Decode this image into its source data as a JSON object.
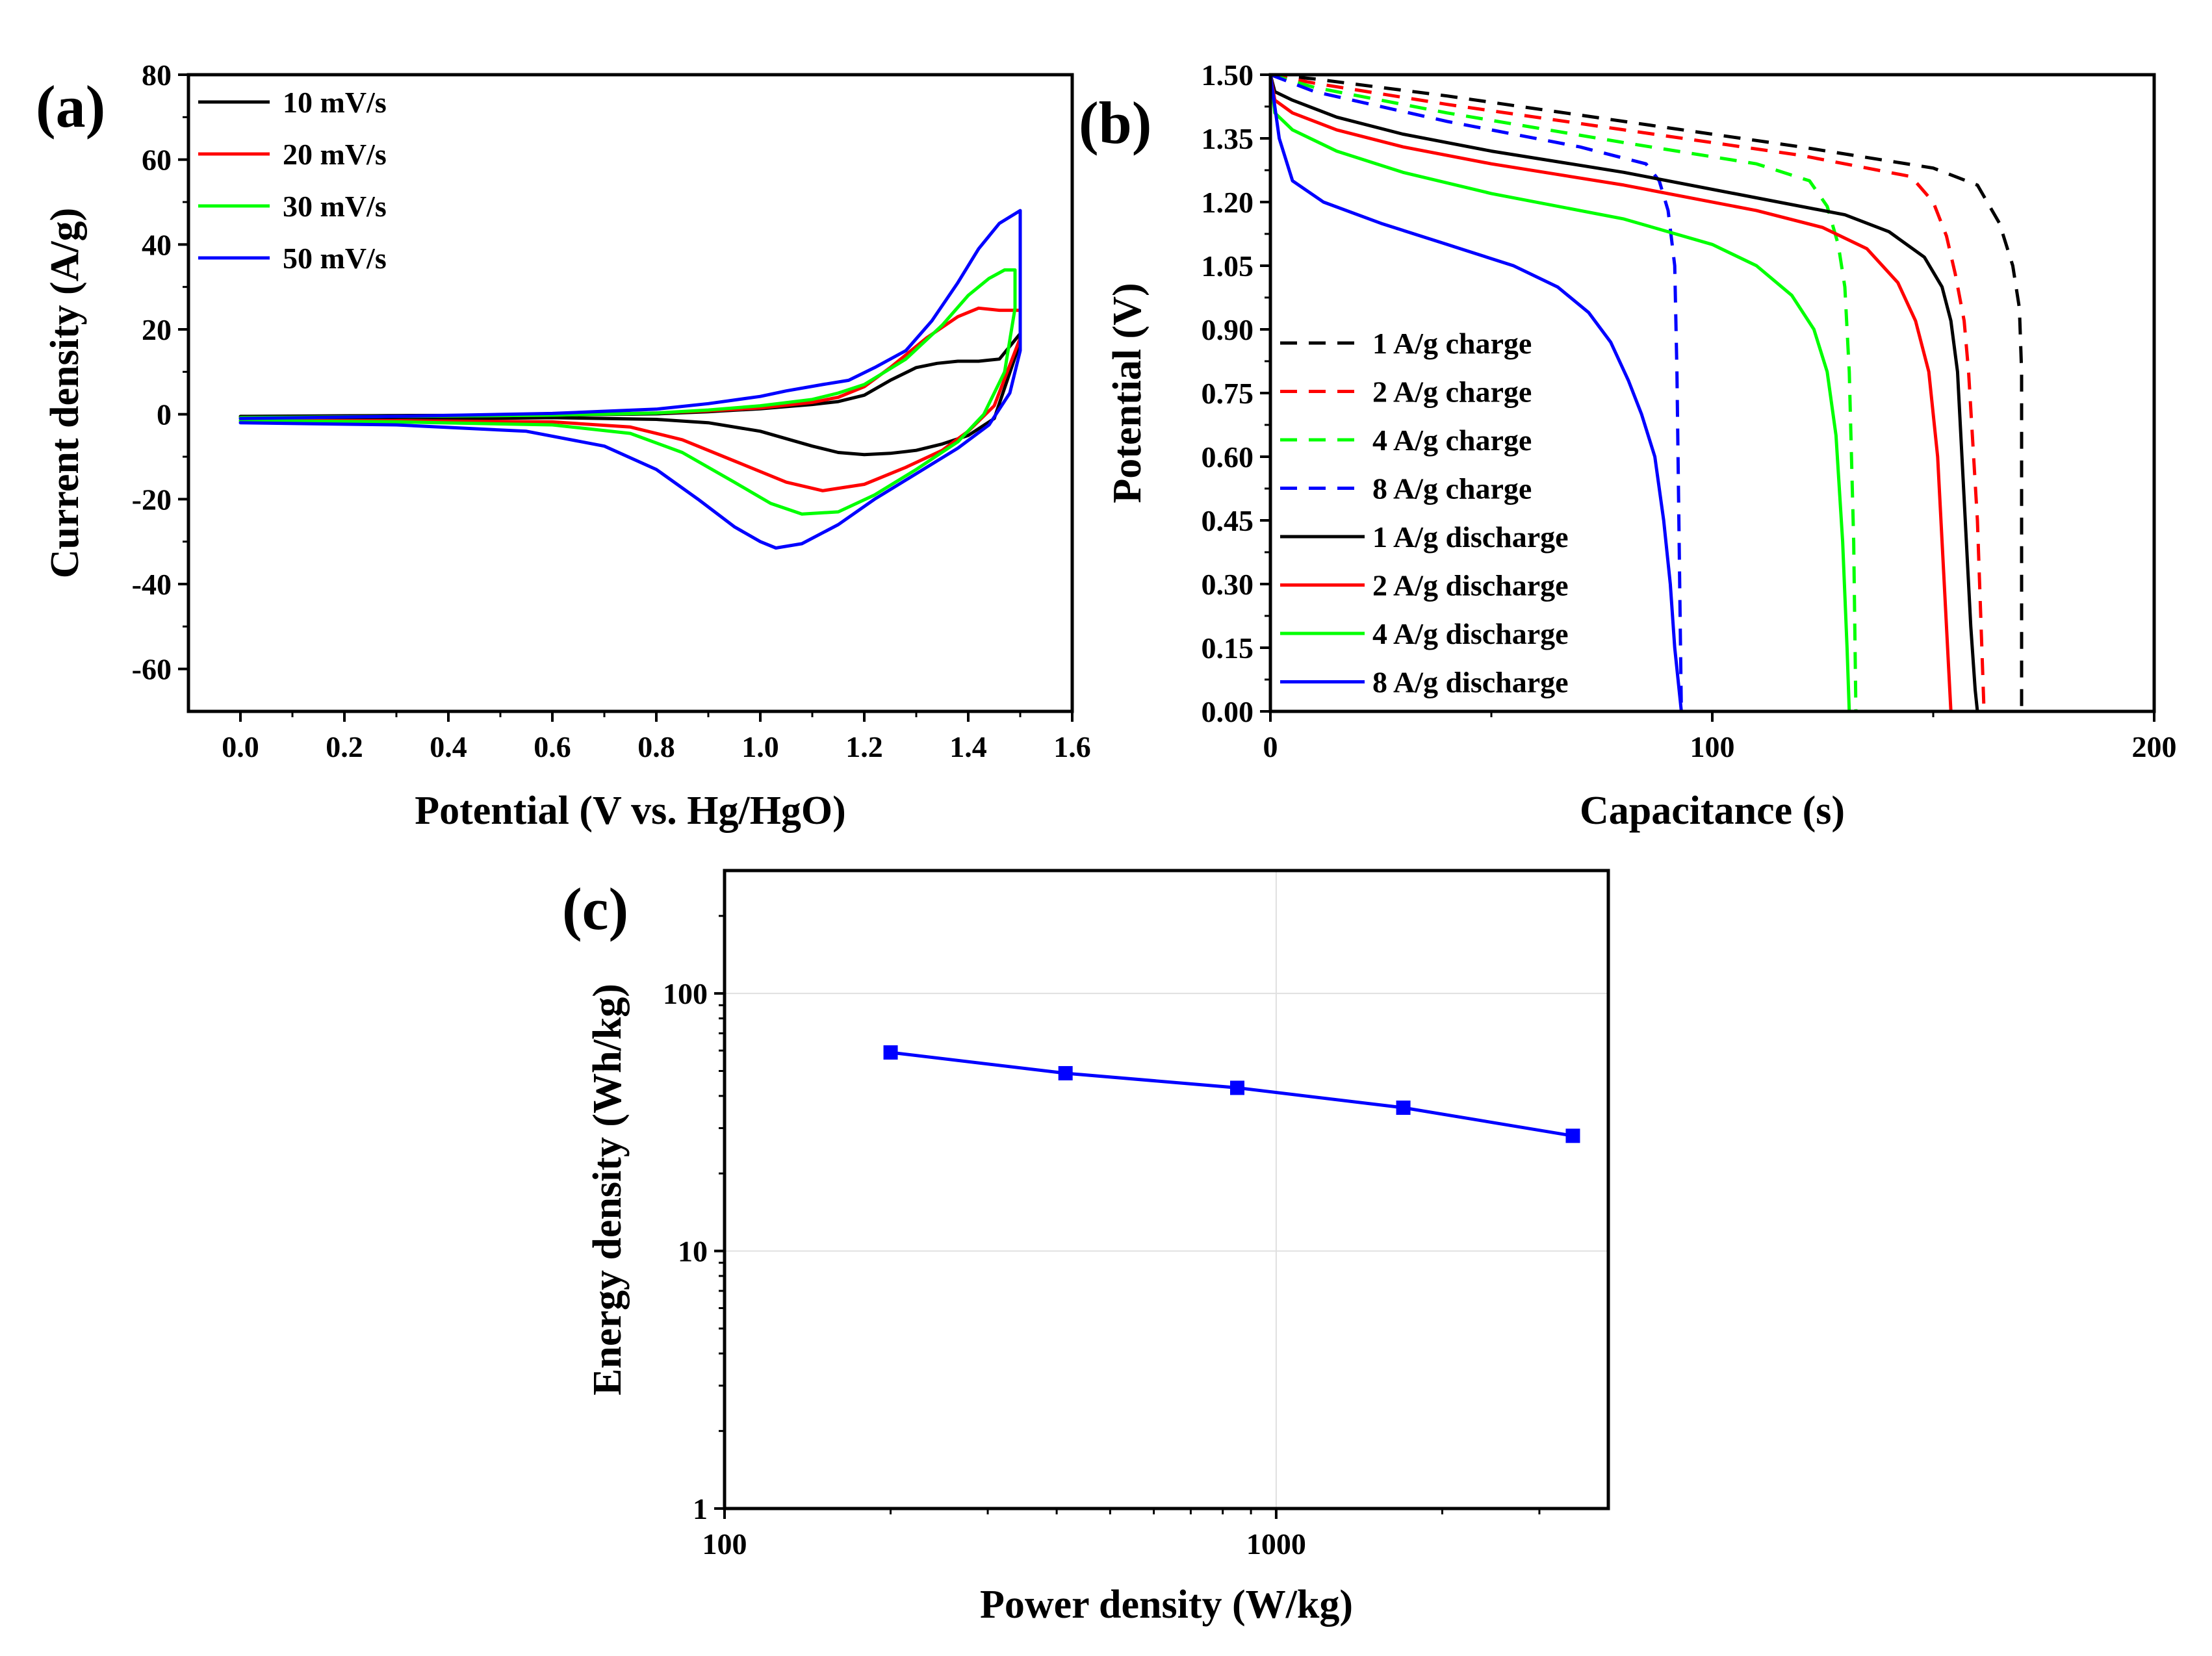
{
  "chart_data": [
    {
      "panel_label": "(a)",
      "type": "line",
      "title": "",
      "xlabel": "Potential (V vs. Hg/HgO)",
      "ylabel": "Current density (A/g)",
      "xlim": [
        -0.1,
        1.6
      ],
      "ylim": [
        -70,
        80
      ],
      "xticks": [
        0.0,
        0.2,
        0.4,
        0.6,
        0.8,
        1.0,
        1.2,
        1.4,
        1.6
      ],
      "xtick_labels": [
        "0.0",
        "0.2",
        "0.4",
        "0.6",
        "0.8",
        "1.0",
        "1.2",
        "1.4",
        "1.6"
      ],
      "yticks": [
        -60,
        -40,
        -20,
        0,
        20,
        40,
        60,
        80
      ],
      "ytick_labels": [
        "-60",
        "-40",
        "-20",
        "0",
        "20",
        "40",
        "60",
        "80"
      ],
      "legend_position": "top-left",
      "series": [
        {
          "name": "10 mV/s",
          "color": "#000000",
          "dash": false,
          "x": [
            0.0,
            0.3,
            0.6,
            0.8,
            0.9,
            1.0,
            1.1,
            1.15,
            1.2,
            1.25,
            1.3,
            1.35,
            1.4,
            1.45,
            1.5,
            1.5,
            1.46,
            1.42,
            1.38,
            1.34,
            1.3,
            1.25,
            1.2,
            1.15,
            1.1,
            1.05,
            1.0,
            0.9,
            0.8,
            0.6,
            0.3,
            0.0
          ],
          "y": [
            -1.5,
            -1.2,
            -0.8,
            -1.2,
            -2.0,
            -4.0,
            -7.5,
            -9.0,
            -9.5,
            -9.2,
            -8.5,
            -7.0,
            -5.0,
            -1.0,
            17.0,
            19.0,
            13.0,
            12.5,
            12.5,
            12.0,
            11.0,
            8.0,
            4.5,
            3.0,
            2.3,
            1.8,
            1.3,
            0.6,
            0.1,
            -0.2,
            -0.3,
            -0.5
          ]
        },
        {
          "name": "20 mV/s",
          "color": "#ff0000",
          "dash": false,
          "x": [
            0.0,
            0.3,
            0.6,
            0.75,
            0.85,
            0.95,
            1.05,
            1.12,
            1.2,
            1.28,
            1.35,
            1.4,
            1.45,
            1.5,
            1.5,
            1.46,
            1.42,
            1.38,
            1.32,
            1.25,
            1.2,
            1.15,
            1.1,
            1.0,
            0.9,
            0.8,
            0.6,
            0.3,
            0.0
          ],
          "y": [
            -1.5,
            -1.5,
            -1.8,
            -3.0,
            -6.0,
            -11.0,
            -16.0,
            -18.0,
            -16.5,
            -12.5,
            -8.5,
            -4.0,
            2.0,
            18.0,
            24.5,
            24.5,
            25.0,
            23.0,
            18.0,
            11.0,
            6.5,
            4.0,
            2.8,
            1.5,
            0.8,
            0.3,
            -0.2,
            -0.5,
            -0.8
          ]
        },
        {
          "name": "30 mV/s",
          "color": "#00ff00",
          "dash": false,
          "x": [
            0.0,
            0.3,
            0.6,
            0.75,
            0.85,
            0.95,
            1.02,
            1.08,
            1.15,
            1.22,
            1.3,
            1.38,
            1.43,
            1.47,
            1.49,
            1.49,
            1.47,
            1.44,
            1.4,
            1.35,
            1.28,
            1.2,
            1.15,
            1.1,
            1.0,
            0.9,
            0.8,
            0.6,
            0.3,
            0.0
          ],
          "y": [
            -1.5,
            -1.8,
            -2.5,
            -4.5,
            -9.0,
            -16.0,
            -21.0,
            -23.5,
            -23.0,
            -19.0,
            -13.0,
            -6.5,
            0.0,
            10.0,
            25.0,
            34.0,
            34.0,
            32.0,
            28.0,
            21.0,
            13.0,
            7.0,
            5.0,
            3.5,
            2.0,
            1.0,
            0.3,
            -0.2,
            -0.5,
            -0.8
          ]
        },
        {
          "name": "50 mV/s",
          "color": "#0000ff",
          "dash": false,
          "x": [
            0.0,
            0.3,
            0.55,
            0.7,
            0.8,
            0.88,
            0.95,
            1.0,
            1.03,
            1.08,
            1.15,
            1.22,
            1.3,
            1.38,
            1.44,
            1.48,
            1.5,
            1.5,
            1.46,
            1.42,
            1.38,
            1.33,
            1.28,
            1.22,
            1.17,
            1.12,
            1.05,
            1.0,
            0.9,
            0.8,
            0.6,
            0.3,
            0.0
          ],
          "y": [
            -2.0,
            -2.5,
            -4.0,
            -7.5,
            -13.0,
            -20.0,
            -26.5,
            -30.0,
            -31.5,
            -30.5,
            -26.0,
            -20.0,
            -14.0,
            -8.0,
            -2.5,
            5.0,
            15.0,
            48.0,
            45.0,
            39.0,
            31.0,
            22.0,
            15.0,
            11.0,
            8.0,
            7.0,
            5.5,
            4.2,
            2.5,
            1.2,
            0.2,
            -0.5,
            -1.0
          ]
        }
      ]
    },
    {
      "panel_label": "(b)",
      "type": "line",
      "title": "",
      "xlabel": "Capacitance (s)",
      "ylabel": "Potential (V)",
      "xlim": [
        0,
        200
      ],
      "ylim": [
        0,
        1.5
      ],
      "xticks": [
        0,
        100,
        200
      ],
      "xtick_labels": [
        "0",
        "100",
        "200"
      ],
      "yticks": [
        0,
        0.15,
        0.3,
        0.45,
        0.6,
        0.75,
        0.9,
        1.05,
        1.2,
        1.35,
        1.5
      ],
      "ytick_labels": [
        "0.00",
        "0.15",
        "0.30",
        "0.45",
        "0.60",
        "0.75",
        "0.90",
        "1.05",
        "1.20",
        "1.35",
        "1.50"
      ],
      "legend_position": "bottom-left",
      "series": [
        {
          "name": "1 A/g charge",
          "color": "#000000",
          "dash": true,
          "x": [
            0,
            10,
            40,
            80,
            120,
            150,
            160,
            165,
            168,
            169.5,
            170,
            170,
            170
          ],
          "y": [
            1.5,
            1.49,
            1.45,
            1.39,
            1.33,
            1.28,
            1.24,
            1.15,
            1.05,
            0.95,
            0.8,
            0.3,
            0.0
          ]
        },
        {
          "name": "2 A/g charge",
          "color": "#ff0000",
          "dash": true,
          "x": [
            0,
            10,
            40,
            80,
            120,
            145,
            150,
            153,
            155,
            157,
            158,
            160,
            161,
            161.5
          ],
          "y": [
            1.5,
            1.48,
            1.43,
            1.37,
            1.31,
            1.26,
            1.2,
            1.12,
            1.03,
            0.92,
            0.8,
            0.45,
            0.15,
            0.0
          ]
        },
        {
          "name": "4 A/g charge",
          "color": "#00ff00",
          "dash": true,
          "x": [
            0,
            10,
            40,
            80,
            110,
            122,
            126,
            128.5,
            130,
            131,
            132,
            132.5
          ],
          "y": [
            1.5,
            1.47,
            1.41,
            1.34,
            1.29,
            1.25,
            1.19,
            1.1,
            1.0,
            0.8,
            0.4,
            0.0
          ]
        },
        {
          "name": "8 A/g charge",
          "color": "#0000ff",
          "dash": true,
          "x": [
            0,
            10,
            40,
            70,
            85,
            88,
            90,
            91.5,
            92,
            92.5,
            93
          ],
          "y": [
            1.5,
            1.46,
            1.39,
            1.33,
            1.29,
            1.25,
            1.18,
            1.05,
            0.8,
            0.4,
            0.0
          ]
        },
        {
          "name": "1 A/g discharge",
          "color": "#000000",
          "dash": false,
          "x": [
            0,
            1,
            5,
            15,
            30,
            50,
            80,
            110,
            130,
            140,
            148,
            152,
            154,
            155.5,
            157,
            158.5,
            159.5,
            160
          ],
          "y": [
            1.5,
            1.46,
            1.44,
            1.4,
            1.36,
            1.32,
            1.27,
            1.21,
            1.17,
            1.13,
            1.07,
            1.0,
            0.92,
            0.8,
            0.5,
            0.2,
            0.05,
            0.0
          ]
        },
        {
          "name": "2 A/g discharge",
          "color": "#ff0000",
          "dash": false,
          "x": [
            0,
            1,
            5,
            15,
            30,
            50,
            80,
            110,
            125,
            135,
            142,
            146,
            149,
            151,
            152.5,
            153.5,
            154
          ],
          "y": [
            1.5,
            1.44,
            1.41,
            1.37,
            1.33,
            1.29,
            1.24,
            1.18,
            1.14,
            1.09,
            1.01,
            0.92,
            0.8,
            0.6,
            0.3,
            0.1,
            0.0
          ]
        },
        {
          "name": "4 A/g discharge",
          "color": "#00ff00",
          "dash": false,
          "x": [
            0,
            1,
            5,
            15,
            30,
            50,
            80,
            100,
            110,
            118,
            123,
            126,
            128,
            129.5,
            130.5,
            131
          ],
          "y": [
            1.5,
            1.41,
            1.37,
            1.32,
            1.27,
            1.22,
            1.16,
            1.1,
            1.05,
            0.98,
            0.9,
            0.8,
            0.65,
            0.4,
            0.15,
            0.0
          ]
        },
        {
          "name": "8 A/g discharge",
          "color": "#0000ff",
          "dash": false,
          "x": [
            0,
            2,
            5,
            12,
            25,
            40,
            55,
            65,
            72,
            77,
            81,
            84,
            87,
            89,
            90.5,
            91.5,
            92.5,
            93
          ],
          "y": [
            1.5,
            1.35,
            1.25,
            1.2,
            1.15,
            1.1,
            1.05,
            1.0,
            0.94,
            0.87,
            0.78,
            0.7,
            0.6,
            0.45,
            0.3,
            0.15,
            0.05,
            0.0
          ]
        }
      ]
    },
    {
      "panel_label": "(c)",
      "type": "line",
      "title": "",
      "xlabel": "Power density (W/kg)",
      "ylabel": "Energy density (Wh/kg)",
      "x_scale": "log",
      "y_scale": "log",
      "xlim": [
        100,
        4000
      ],
      "ylim": [
        1,
        300
      ],
      "xticks": [
        100,
        1000
      ],
      "xtick_labels": [
        "100",
        "1000"
      ],
      "yticks": [
        1,
        10,
        100
      ],
      "ytick_labels": [
        "1",
        "10",
        "100"
      ],
      "grid": true,
      "series": [
        {
          "name": "Energy density",
          "color": "#0000ff",
          "marker": "square",
          "x": [
            200,
            415,
            850,
            1700,
            3450
          ],
          "y": [
            59,
            49,
            43,
            36,
            28
          ]
        }
      ]
    }
  ]
}
